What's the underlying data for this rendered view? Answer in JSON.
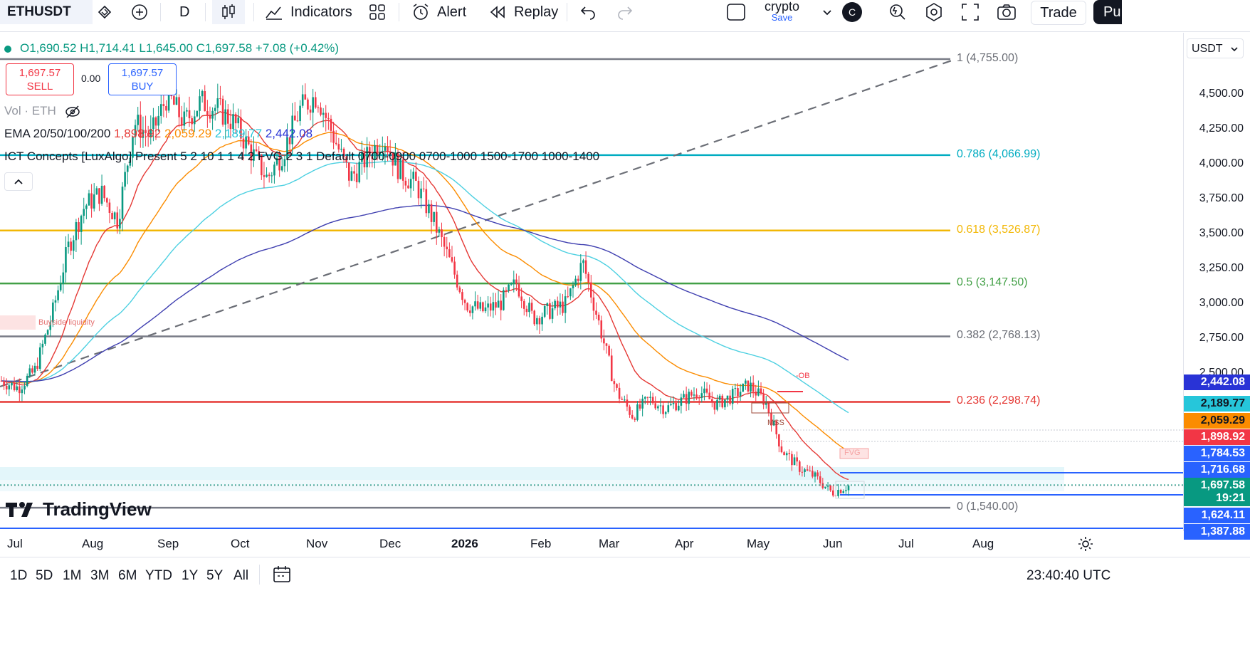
{
  "toolbar": {
    "symbol": "ETHUSDT",
    "interval": "D",
    "indicators_label": "Indicators",
    "alert_label": "Alert",
    "replay_label": "Replay",
    "layout_name": "crypto",
    "layout_save": "Save",
    "avatar_letter": "C",
    "trade_label": "Trade",
    "publish_label": "Pu"
  },
  "legend": {
    "open": "O1,690.52",
    "high": "H1,714.41",
    "low": "L1,645.00",
    "close": "C1,697.58",
    "change": "+7.08 (+0.42%)",
    "sell_price": "1,697.57",
    "sell_label": "SELL",
    "spread": "0.00",
    "buy_price": "1,697.57",
    "buy_label": "BUY",
    "volume": "Vol · ETH",
    "ema_name": "EMA 20/50/100/200",
    "ema20": "1,898.92",
    "ema50": "2,059.29",
    "ema100": "2,189.77",
    "ema200": "2,442.08",
    "ict": "ICT Concepts [LuxAlgo] Present 5 2 10 1 1 4 2 FVG 2 3 1 Default 0700-0900 0700-1000 1500-1700 1000-1400"
  },
  "currency": "USDT",
  "watermark": "TradingView",
  "annotations": {
    "buyside": "Buyside liquidity",
    "ob": "-OB",
    "mss": "MSS",
    "fvg": "FVG"
  },
  "colors": {
    "up": "#089981",
    "down": "#f23645",
    "ema20": "#e53935",
    "ema50": "#fb8c00",
    "ema100": "#4dd0e1",
    "ema200": "#3f3fb0",
    "fib_786": "#00acc1",
    "fib_618": "#f2b705",
    "fib_5": "#43a047",
    "fib_236": "#e53935",
    "fib_gray": "#787b86"
  },
  "timeframes": [
    "1D",
    "5D",
    "1M",
    "3M",
    "6M",
    "YTD",
    "1Y",
    "5Y",
    "All"
  ],
  "clock": "23:40:40 UTC",
  "chart_data": {
    "type": "candlestick",
    "symbol": "ETHUSDT",
    "interval": "D",
    "y_ticks": [
      "4,500.00",
      "4,250.00",
      "4,000.00",
      "3,750.00",
      "3,500.00",
      "3,250.00",
      "3,000.00",
      "2,750.00",
      "2,500.00"
    ],
    "x_ticks": [
      "Jul",
      "Aug",
      "Sep",
      "Oct",
      "Nov",
      "Dec",
      "2026",
      "Feb",
      "Mar",
      "Apr",
      "May",
      "Jun",
      "Jul",
      "Aug"
    ],
    "ohlc_path": [
      2450,
      2400,
      2520,
      2900,
      3400,
      3700,
      3800,
      3600,
      4300,
      4200,
      4500,
      4300,
      4450,
      4400,
      4300,
      4100,
      3900,
      4100,
      4400,
      4500,
      4200,
      3900,
      4050,
      4200,
      3950,
      3850,
      3600,
      3300,
      3000,
      2950,
      3000,
      3150,
      2900,
      2950,
      3000,
      3300,
      2850,
      2380,
      2200,
      2320,
      2250,
      2310,
      2380,
      2280,
      2340,
      2420,
      2300,
      1950,
      1830,
      1760,
      1648,
      1697
    ],
    "ema": [
      {
        "name": "EMA20",
        "value": "1,898.92",
        "color": "#e53935"
      },
      {
        "name": "EMA50",
        "value": "2,059.29",
        "color": "#fb8c00"
      },
      {
        "name": "EMA100",
        "value": "2,189.77",
        "color": "#4dd0e1"
      },
      {
        "name": "EMA200",
        "value": "2,442.08",
        "color": "#3f3fb0"
      }
    ],
    "fib_levels": [
      {
        "label": "1 (4,755.00)",
        "price": 4755.0,
        "color": "#787b86"
      },
      {
        "label": "0.786 (4,066.99)",
        "price": 4066.99,
        "color": "#00acc1"
      },
      {
        "label": "0.618 (3,526.87)",
        "price": 3526.87,
        "color": "#f2b705"
      },
      {
        "label": "0.5 (3,147.50)",
        "price": 3147.5,
        "color": "#43a047"
      },
      {
        "label": "0.382 (2,768.13)",
        "price": 2768.13,
        "color": "#787b86"
      },
      {
        "label": "0.236 (2,298.74)",
        "price": 2298.74,
        "color": "#e53935"
      },
      {
        "label": "0 (1,540.00)",
        "price": 1540.0,
        "color": "#787b86"
      }
    ],
    "price_labels": [
      {
        "value": "2,442.08",
        "color": "#2933d6"
      },
      {
        "value": "2,189.77",
        "color": "#26c6da"
      },
      {
        "value": "2,059.29",
        "color": "#fb8c00"
      },
      {
        "value": "1,898.92",
        "color": "#f23645"
      },
      {
        "value": "1,784.53",
        "color": "#2962ff"
      },
      {
        "value": "1,716.68",
        "color": "#2962ff"
      },
      {
        "value": "1,697.58",
        "color": "#089981"
      },
      {
        "value": "19:21",
        "color": "#089981"
      },
      {
        "value": "1,624.11",
        "color": "#2962ff"
      },
      {
        "value": "1,387.88",
        "color": "#2962ff"
      }
    ]
  }
}
